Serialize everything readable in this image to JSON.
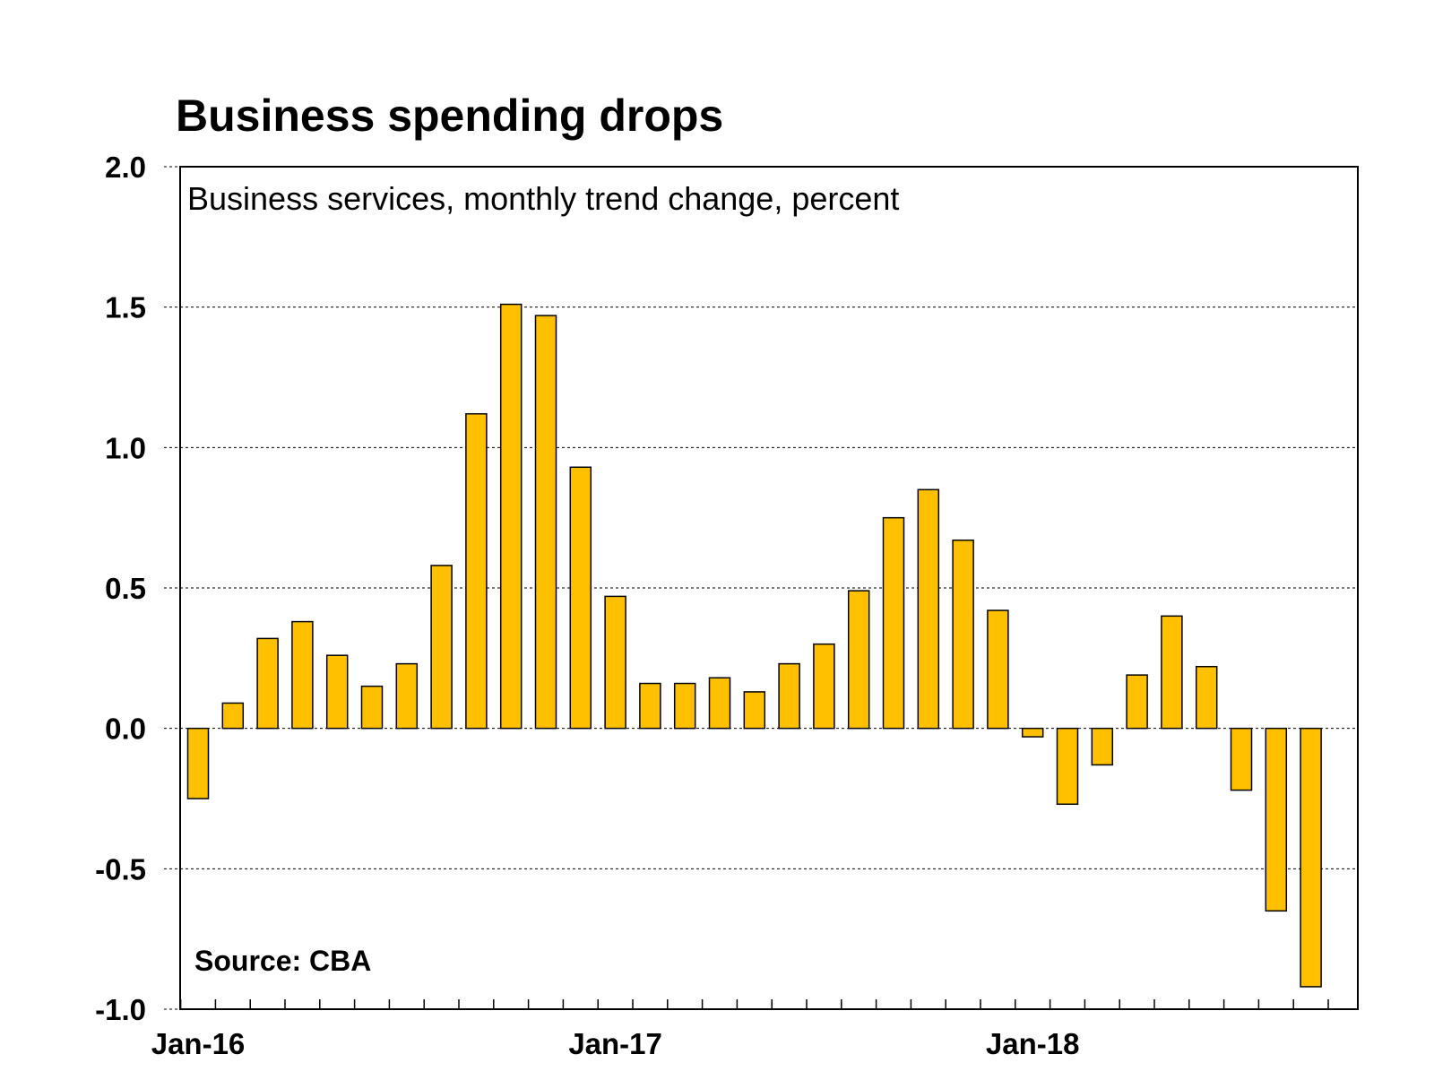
{
  "chart_data": {
    "type": "bar",
    "title": "Business spending drops",
    "subtitle": "Business services, monthly trend change, percent",
    "source": "Source: CBA",
    "xlabel": "",
    "ylabel": "",
    "ylim": [
      -1.0,
      2.0
    ],
    "y_ticks": [
      2.0,
      1.5,
      1.0,
      0.5,
      0.0,
      -0.5,
      -1.0
    ],
    "y_tick_labels": [
      "2.0",
      "1.5",
      "1.0",
      "0.5",
      "0.0",
      "-0.5",
      "-1.0"
    ],
    "x_tick_labels": [
      {
        "index": 0,
        "label": "Jan-16"
      },
      {
        "index": 12,
        "label": "Jan-17"
      },
      {
        "index": 24,
        "label": "Jan-18"
      }
    ],
    "grid": true,
    "bar_color": "#FFC000",
    "bar_edge_color": "#000000",
    "series": [
      {
        "x": [
          "Jan-16",
          "Feb-16",
          "Mar-16",
          "Apr-16",
          "May-16",
          "Jun-16",
          "Jul-16",
          "Aug-16",
          "Sep-16",
          "Oct-16",
          "Nov-16",
          "Dec-16",
          "Jan-17",
          "Feb-17",
          "Mar-17",
          "Apr-17",
          "May-17",
          "Jun-17",
          "Jul-17",
          "Aug-17",
          "Sep-17",
          "Oct-17",
          "Nov-17",
          "Dec-17",
          "Jan-18",
          "Feb-18",
          "Mar-18",
          "Apr-18",
          "May-18",
          "Jun-18",
          "Jul-18",
          "Aug-18",
          "Sep-18"
        ],
        "values": [
          -0.25,
          0.09,
          0.32,
          0.38,
          0.26,
          0.15,
          0.23,
          0.58,
          1.12,
          1.51,
          1.47,
          0.93,
          0.47,
          0.16,
          0.16,
          0.18,
          0.13,
          0.23,
          0.3,
          0.49,
          0.75,
          0.85,
          0.67,
          0.42,
          -0.03,
          -0.27,
          -0.13,
          0.19,
          0.4,
          0.22,
          -0.22,
          -0.65,
          -0.92
        ]
      }
    ]
  }
}
